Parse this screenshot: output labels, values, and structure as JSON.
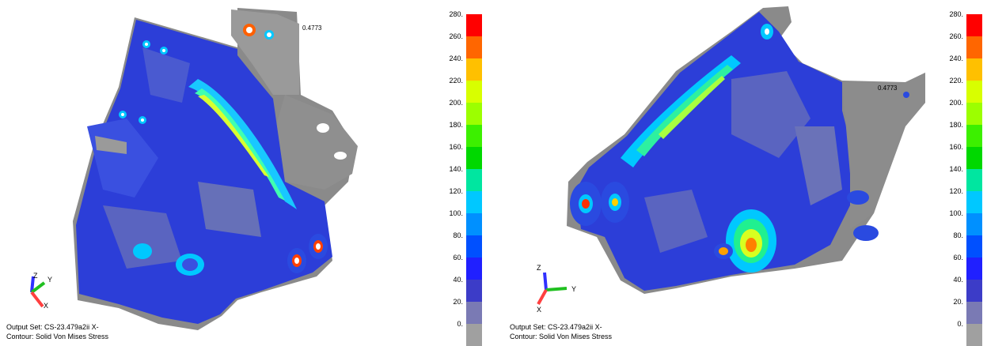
{
  "panels": [
    {
      "probe_value": "0.4773",
      "output_set": "Output Set: CS-23.479a2ii X-",
      "contour": "Contour: Solid Von Mises Stress",
      "axes": {
        "z": "Z",
        "y": "Y",
        "x": "X"
      }
    },
    {
      "probe_value": "0.4773",
      "output_set": "Output Set: CS-23.479a2ii X-",
      "contour": "Contour: Solid Von Mises Stress",
      "axes": {
        "z": "Z",
        "y": "Y",
        "x": "X"
      }
    }
  ],
  "legend": {
    "labels": [
      "280.",
      "260.",
      "240.",
      "220.",
      "200.",
      "180.",
      "160.",
      "140.",
      "120.",
      "100.",
      "80.",
      "60.",
      "40.",
      "20.",
      "0."
    ],
    "colors": [
      "#ff0000",
      "#ff6600",
      "#ffc000",
      "#d8ff00",
      "#9cff00",
      "#3cf000",
      "#00d800",
      "#00e6a0",
      "#00c8ff",
      "#0090ff",
      "#0050ff",
      "#2020ff",
      "#3c3cc8",
      "#7a7ab4",
      "#a0a0a0"
    ]
  }
}
